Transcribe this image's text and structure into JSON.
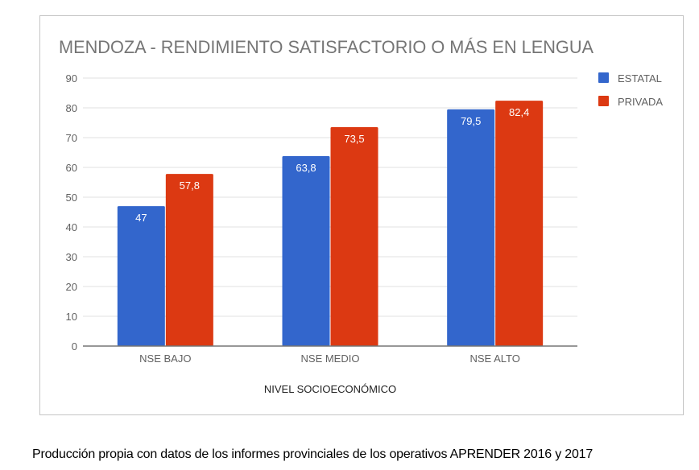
{
  "chart_data": {
    "type": "bar",
    "title": "MENDOZA - RENDIMIENTO SATISFACTORIO O MÁS EN LENGUA",
    "xlabel": "NIVEL SOCIOECONÓMICO",
    "ylabel": "",
    "categories": [
      "NSE BAJO",
      "NSE MEDIO",
      "NSE ALTO"
    ],
    "series": [
      {
        "name": "ESTATAL",
        "color": "#3366cc",
        "values": [
          47,
          63.8,
          79.5
        ],
        "labels": [
          "47",
          "63,8",
          "79,5"
        ]
      },
      {
        "name": "PRIVADA",
        "color": "#dc3912",
        "values": [
          57.8,
          73.5,
          82.4
        ],
        "labels": [
          "57,8",
          "73,5",
          "82,4"
        ]
      }
    ],
    "ylim": [
      0,
      90
    ],
    "yticks": [
      0,
      10,
      20,
      30,
      40,
      50,
      60,
      70,
      80,
      90
    ],
    "grid": true,
    "legend_position": "right"
  },
  "caption": "Producción propia con datos de los informes provinciales de los operativos APRENDER 2016 y 2017"
}
